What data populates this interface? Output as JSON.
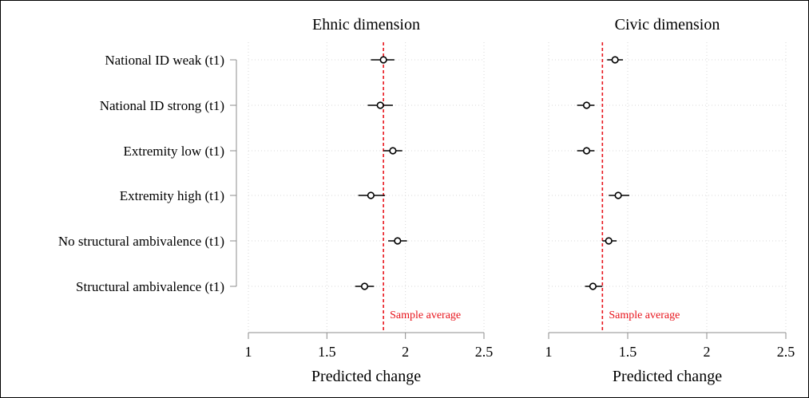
{
  "chart_data": [
    {
      "type": "scatter",
      "title": "Ehnic dimension",
      "xlabel": "Predicted change",
      "xlim": [
        1,
        2.5
      ],
      "xticks": [
        "1",
        "1.5",
        "2",
        "2.5"
      ],
      "categories": [
        "National ID weak (t1)",
        "National ID strong (t1)",
        "Extremity low (t1)",
        "Extremity high (t1)",
        "No structural ambivalence (t1)",
        "Structural ambivalence (t1)"
      ],
      "values": [
        1.86,
        1.84,
        1.92,
        1.78,
        1.95,
        1.74
      ],
      "ci_low": [
        1.78,
        1.76,
        1.86,
        1.7,
        1.89,
        1.68
      ],
      "ci_high": [
        1.93,
        1.92,
        1.98,
        1.87,
        2.01,
        1.8
      ],
      "reference_line": {
        "value": 1.86,
        "label": "Sample average",
        "color": "#e8141c"
      },
      "grid": true
    },
    {
      "type": "scatter",
      "title": "Civic dimension",
      "xlabel": "Predicted change",
      "xlim": [
        1,
        2.5
      ],
      "xticks": [
        "1",
        "1.5",
        "2",
        "2.5"
      ],
      "categories": [
        "National ID weak (t1)",
        "National ID strong (t1)",
        "Extremity low (t1)",
        "Extremity high (t1)",
        "No structural ambivalence (t1)",
        "Structural ambivalence (t1)"
      ],
      "values": [
        1.42,
        1.24,
        1.24,
        1.44,
        1.38,
        1.28
      ],
      "ci_low": [
        1.37,
        1.18,
        1.18,
        1.38,
        1.34,
        1.23
      ],
      "ci_high": [
        1.47,
        1.29,
        1.29,
        1.51,
        1.43,
        1.34
      ],
      "reference_line": {
        "value": 1.34,
        "label": "Sample average",
        "color": "#e8141c"
      },
      "grid": true
    }
  ]
}
